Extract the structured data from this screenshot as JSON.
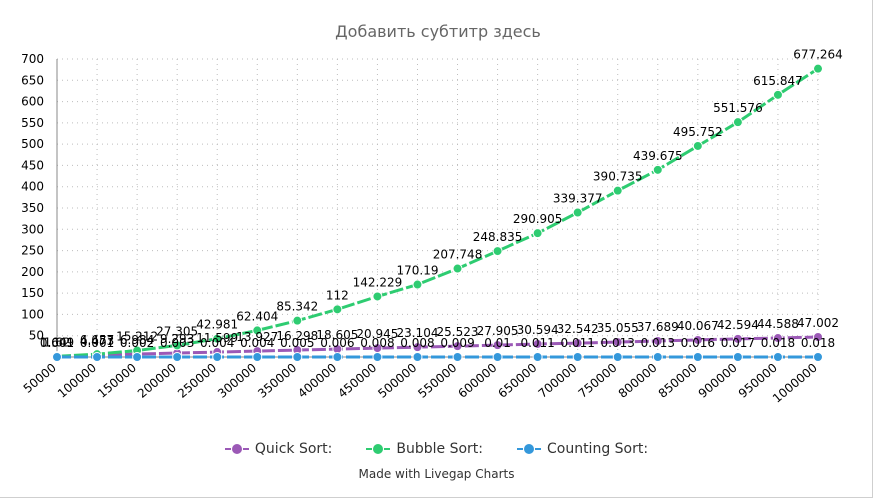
{
  "chart_data": {
    "type": "line",
    "title": "Добавить субтитр здесь",
    "xlabel": "",
    "ylabel": "",
    "ylim": [
      0,
      700
    ],
    "yticks": [
      50,
      100,
      150,
      200,
      250,
      300,
      350,
      400,
      450,
      500,
      550,
      600,
      650,
      700
    ],
    "grid": true,
    "legend_position": "bottom",
    "categories": [
      "50000",
      "100000",
      "150000",
      "200000",
      "250000",
      "300000",
      "350000",
      "400000",
      "450000",
      "500000",
      "550000",
      "600000",
      "650000",
      "700000",
      "750000",
      "800000",
      "850000",
      "900000",
      "950000",
      "1000000"
    ],
    "series": [
      {
        "name": "Quick Sort:",
        "color": "#9b59b6",
        "values": [
          1.649,
          4.473,
          6.984,
          9.293,
          11.599,
          13.927,
          16.298,
          18.605,
          20.945,
          23.104,
          25.523,
          27.905,
          30.594,
          32.542,
          35.055,
          37.689,
          40.067,
          42.594,
          44.588,
          47.002
        ],
        "labels": [
          "1.649",
          "4.473",
          "6.984",
          "9.293",
          "11.599",
          "13.927",
          "16.298",
          "18.605",
          "20.945",
          "23.104",
          "25.523",
          "27.905",
          "30.594",
          "32.542",
          "35.055",
          "37.689",
          "40.067",
          "42.594",
          "44.588",
          "47.002"
        ]
      },
      {
        "name": "Bubble Sort:",
        "color": "#2ecc71",
        "values": [
          1.62,
          6.657,
          15.212,
          27.305,
          42.981,
          62.404,
          85.342,
          112,
          142.229,
          170.19,
          207.748,
          248.835,
          290.905,
          339.377,
          390.735,
          439.675,
          495.752,
          551.576,
          615.847,
          677.264
        ],
        "labels": [
          "1.62",
          "6.657",
          "15.212",
          "27.305",
          "42.981",
          "62.404",
          "85.342",
          "112",
          "142.229",
          "170.19",
          "207.748",
          "248.835",
          "290.905",
          "339.377",
          "390.735",
          "439.675",
          "495.752",
          "551.576",
          "615.847",
          "677.264"
        ]
      },
      {
        "name": "Counting Sort:",
        "color": "#3498db",
        "values": [
          0.001,
          0.001,
          0.002,
          0.003,
          0.004,
          0.004,
          0.005,
          0.006,
          0.008,
          0.008,
          0.009,
          0.01,
          0.011,
          0.011,
          0.013,
          0.013,
          0.016,
          0.017,
          0.018,
          0.018
        ],
        "labels": [
          "0.001",
          "0.001",
          "0.002",
          "0.003",
          "0.004",
          "0.004",
          "0.005",
          "0.006",
          "0.008",
          "0.008",
          "0.009",
          "0.01",
          "0.011",
          "0.011",
          "0.013",
          "0.013",
          "0.016",
          "0.017",
          "0.018",
          "0.018"
        ]
      }
    ]
  },
  "footer": {
    "credit": "Made with Livegap Charts"
  }
}
